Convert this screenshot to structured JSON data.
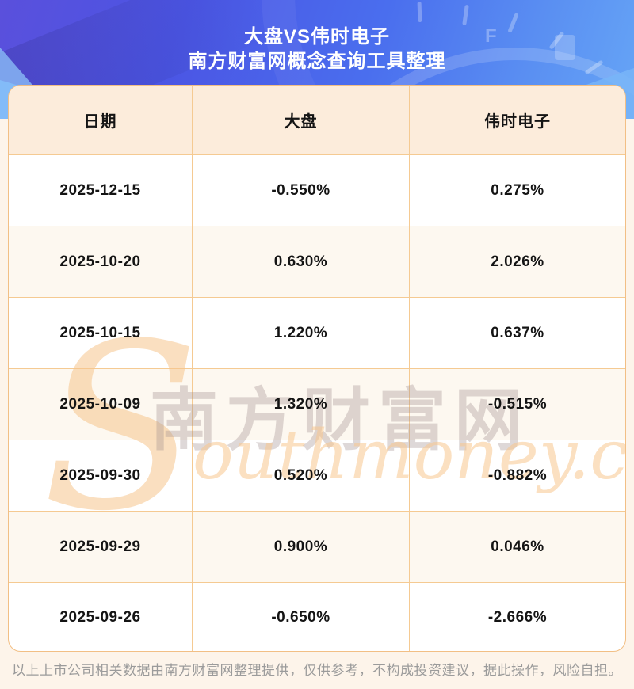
{
  "page": {
    "background_color": "#fdf4ea",
    "header": {
      "title": "大盘VS伟时电子",
      "subtitle": "南方财富网概念查询工具整理",
      "gradient_colors": [
        "#5a50dc",
        "#4b55e4",
        "#4a6eee",
        "#66a5f6"
      ],
      "gauge_letter": "F"
    },
    "footer": {
      "disclaimer": "以上上市公司相关数据由南方财富网整理提供，仅供参考，不构成投资建议，据此操作，风险自担。"
    }
  },
  "watermark": {
    "initial": "S",
    "cn": "南方财富网",
    "en": "outhmoney.com",
    "color": "#f6c58d"
  },
  "table_style": {
    "border_color": "#f5ca92",
    "header_bg": "#fcecdb",
    "alt_row_bg": "#fdf8f0"
  },
  "chart_data": {
    "type": "table",
    "title": "大盘VS伟时电子",
    "subtitle": "南方财富网概念查询工具整理",
    "columns": [
      "日期",
      "大盘",
      "伟时电子"
    ],
    "rows": [
      [
        "2025-12-15",
        "-0.550%",
        "0.275%"
      ],
      [
        "2025-10-20",
        "0.630%",
        "2.026%"
      ],
      [
        "2025-10-15",
        "1.220%",
        "0.637%"
      ],
      [
        "2025-10-09",
        "1.320%",
        "-0.515%"
      ],
      [
        "2025-09-30",
        "0.520%",
        "-0.882%"
      ],
      [
        "2025-09-29",
        "0.900%",
        "0.046%"
      ],
      [
        "2025-09-26",
        "-0.650%",
        "-2.666%"
      ]
    ]
  }
}
